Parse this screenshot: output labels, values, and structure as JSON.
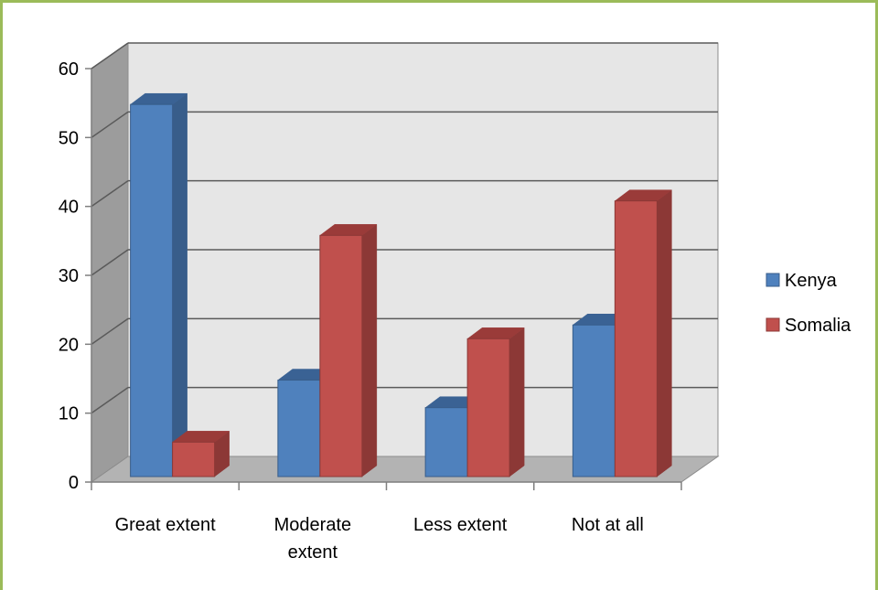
{
  "chart_data": {
    "type": "bar",
    "style": "3d-clustered-column",
    "categories": [
      "Great extent",
      "Moderate extent",
      "Less extent",
      "Not at all"
    ],
    "category_lines": [
      [
        "Great extent"
      ],
      [
        "Moderate",
        "extent"
      ],
      [
        "Less extent"
      ],
      [
        "Not at all"
      ]
    ],
    "series": [
      {
        "name": "Kenya",
        "values": [
          54,
          14,
          10,
          22
        ],
        "color": "#4f81bd",
        "side_color": "#385d8a",
        "top_color": "#3a6294"
      },
      {
        "name": "Somalia",
        "values": [
          5,
          35,
          20,
          40
        ],
        "color": "#c0504d",
        "side_color": "#8c3836",
        "top_color": "#9a3b39"
      }
    ],
    "ylim": [
      0,
      60
    ],
    "yticks": [
      0,
      10,
      20,
      30,
      40,
      50,
      60
    ],
    "grid": true,
    "legend_position": "right",
    "title": "",
    "xlabel": "",
    "ylabel": ""
  }
}
